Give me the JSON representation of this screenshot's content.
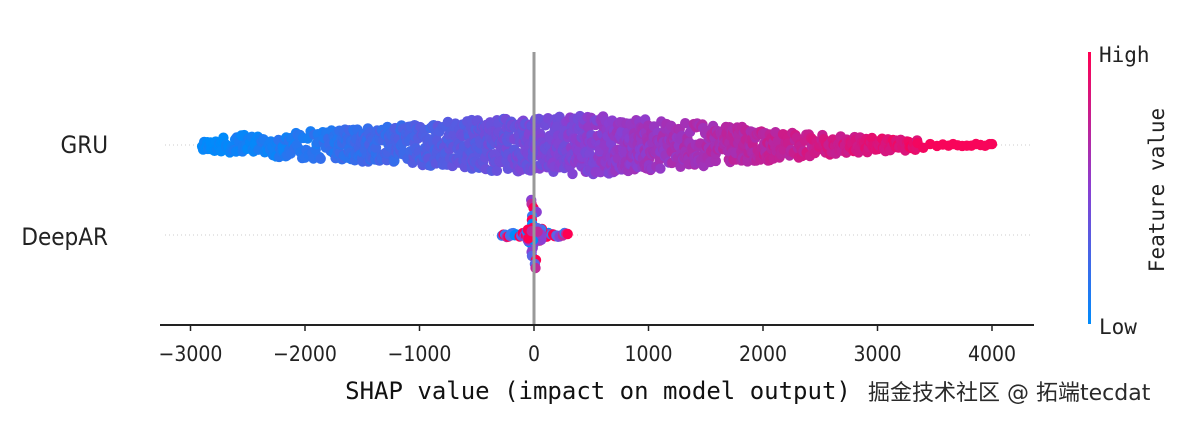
{
  "chart_data": {
    "type": "scatter",
    "subtype": "shap-beeswarm",
    "xlabel": "SHAP value (impact on model output)",
    "xlim": [
      -3250,
      4400
    ],
    "xticks": [
      -3000,
      -2000,
      -1000,
      0,
      1000,
      2000,
      3000,
      4000
    ],
    "xtick_labels": [
      "−3000",
      "−2000",
      "−1000",
      "0",
      "1000",
      "2000",
      "3000",
      "4000"
    ],
    "features": [
      {
        "name": "GRU",
        "min": -2900,
        "max": 4000,
        "density": [
          [
            -2900,
            0.15
          ],
          [
            -2500,
            0.35
          ],
          [
            -2000,
            0.45
          ],
          [
            -1500,
            0.55
          ],
          [
            -1000,
            0.7
          ],
          [
            -500,
            0.85
          ],
          [
            0,
            0.9
          ],
          [
            500,
            1.0
          ],
          [
            1000,
            0.85
          ],
          [
            1500,
            0.7
          ],
          [
            2000,
            0.55
          ],
          [
            2500,
            0.35
          ],
          [
            3000,
            0.25
          ],
          [
            3500,
            0.12
          ],
          [
            4000,
            0.08
          ]
        ],
        "color_by_value": true
      },
      {
        "name": "DeepAR",
        "min": -280,
        "max": 300,
        "concentrated_at": 0,
        "color_by_value": false
      }
    ],
    "colorbar": {
      "title": "Feature value",
      "high_label": "High",
      "low_label": "Low",
      "high_color": "#ff0052",
      "low_color": "#008bfb",
      "mid_color": "#8a3fd2"
    },
    "zero_line_color": "#999999",
    "grid": false
  },
  "watermark": "掘金技术社区 @ 拓端tecdat"
}
